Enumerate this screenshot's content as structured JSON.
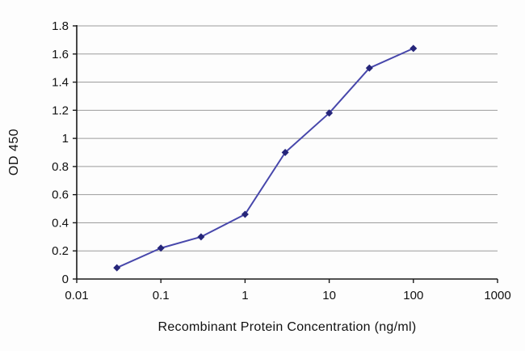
{
  "chart_data": {
    "type": "line",
    "title": "",
    "xlabel": "Recombinant Protein Concentration (ng/ml)",
    "ylabel": "OD 450",
    "x_scale": "log",
    "xlim": [
      0.01,
      1000
    ],
    "ylim": [
      0,
      1.8
    ],
    "x_ticks": [
      0.01,
      0.1,
      1,
      10,
      100,
      1000
    ],
    "x_tick_labels": [
      "0.01",
      "0.1",
      "1",
      "10",
      "100",
      "1000"
    ],
    "y_ticks": [
      0,
      0.2,
      0.4,
      0.6,
      0.8,
      1,
      1.2,
      1.4,
      1.6,
      1.8
    ],
    "y_tick_labels": [
      "0",
      "0.2",
      "0.4",
      "0.6",
      "0.8",
      "1",
      "1.2",
      "1.4",
      "1.6",
      "1.8"
    ],
    "grid": "horizontal",
    "legend": "none",
    "series": [
      {
        "name": "OD 450",
        "color": "#4747ab",
        "marker": "diamond",
        "marker_color": "#26267a",
        "points": [
          {
            "x": 0.03,
            "y": 0.08
          },
          {
            "x": 0.1,
            "y": 0.22
          },
          {
            "x": 0.3,
            "y": 0.3
          },
          {
            "x": 1,
            "y": 0.46
          },
          {
            "x": 3,
            "y": 0.9
          },
          {
            "x": 10,
            "y": 1.18
          },
          {
            "x": 30,
            "y": 1.5
          },
          {
            "x": 100,
            "y": 1.64
          }
        ]
      }
    ]
  },
  "colors": {
    "line": "#4747ab",
    "marker": "#26267a",
    "grid": "#9c9c9c",
    "axis": "#1a1a1a",
    "background": "#fdfdfd",
    "text": "#111111"
  }
}
